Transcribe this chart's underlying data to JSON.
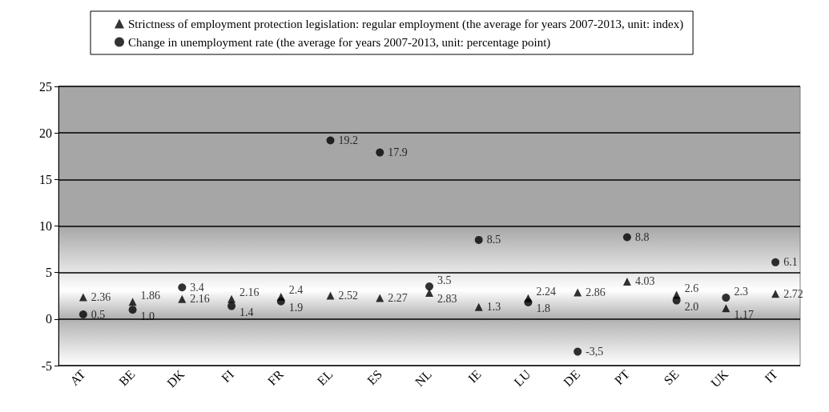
{
  "chart_data": {
    "type": "scatter",
    "categories": [
      "AT",
      "BE",
      "DK",
      "FI",
      "FR",
      "EL",
      "ES",
      "NL",
      "IE",
      "LU",
      "DE",
      "PT",
      "SE",
      "UK",
      "IT"
    ],
    "series": [
      {
        "name": "Strictness of employment protection legislation: regular employment (the average for years 2007-2013, unit: index)",
        "color": "#000000",
        "marker": "triangle",
        "values": [
          2.36,
          1.86,
          2.16,
          2.16,
          2.4,
          2.52,
          2.27,
          2.83,
          1.3,
          2.24,
          2.86,
          4.03,
          2.6,
          1.17,
          2.72
        ],
        "value_labels": [
          "2.36",
          "1.86",
          "2.16",
          "2.16",
          "2.4",
          "2.52",
          "2.27",
          "2.83",
          "1.3",
          "2.24",
          "2.86",
          "4.03",
          "2.6",
          "1.17",
          "2.72"
        ]
      },
      {
        "name": "Change in unemployment rate (the average for years 2007-2013, unit: percentage point)",
        "color": "#000000",
        "marker": "circle",
        "values": [
          0.5,
          1.0,
          3.4,
          1.4,
          1.9,
          19.2,
          17.9,
          3.5,
          8.5,
          1.8,
          -3.5,
          8.8,
          2.0,
          2.3,
          6.1
        ],
        "value_labels": [
          "0.5",
          "1.0",
          "3.4",
          "1.4",
          "1.9",
          "19.2",
          "17.9",
          "3.5",
          "8.5",
          "1.8",
          "-3,5",
          "8.8",
          "2.0",
          "2.3",
          "6.1"
        ]
      }
    ],
    "ylim": [
      -5,
      25
    ],
    "yticks": [
      -5,
      0,
      5,
      10,
      15,
      20,
      25
    ],
    "grid": "y",
    "legend": "top"
  }
}
